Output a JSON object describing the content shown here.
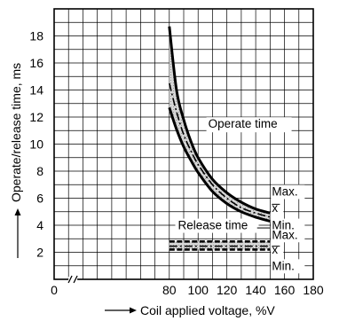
{
  "chart_data": {
    "type": "line",
    "title": "",
    "xlabel": "Coil applied voltage, %V",
    "ylabel": "Operate/release time, ms",
    "xlim": [
      0,
      180
    ],
    "ylim": [
      0,
      20
    ],
    "x_ticks": [
      0,
      80,
      100,
      120,
      140,
      160,
      180
    ],
    "y_ticks": [
      2,
      4,
      6,
      8,
      10,
      12,
      14,
      16,
      18
    ],
    "x_axis_break": true,
    "grid": true,
    "annotations": {
      "operate": "Operate time",
      "release": "Release time",
      "operate_max": "Max.",
      "operate_mean": "x",
      "operate_min": "Min.",
      "release_max": "Max.",
      "release_mean": "x",
      "release_min": "Min."
    },
    "series": [
      {
        "group": "operate",
        "stat": "max",
        "x": [
          80,
          85,
          90,
          95,
          100,
          110,
          120,
          130,
          140,
          150
        ],
        "values": [
          18.7,
          14.0,
          11.8,
          10.2,
          9.0,
          7.4,
          6.4,
          5.7,
          5.2,
          4.9
        ]
      },
      {
        "group": "operate",
        "stat": "mean",
        "x": [
          80,
          85,
          90,
          95,
          100,
          110,
          120,
          130,
          140,
          150
        ],
        "values": [
          14.5,
          12.4,
          10.7,
          9.5,
          8.5,
          7.0,
          6.0,
          5.3,
          4.9,
          4.6
        ]
      },
      {
        "group": "operate",
        "stat": "min",
        "x": [
          80,
          85,
          90,
          95,
          100,
          110,
          120,
          130,
          140,
          150
        ],
        "values": [
          12.7,
          11.1,
          9.8,
          8.8,
          7.9,
          6.5,
          5.6,
          5.0,
          4.6,
          4.3
        ]
      },
      {
        "group": "release",
        "stat": "max",
        "x": [
          80,
          150
        ],
        "values": [
          2.8,
          2.8
        ]
      },
      {
        "group": "release",
        "stat": "mean",
        "x": [
          80,
          150
        ],
        "values": [
          2.45,
          2.45
        ]
      },
      {
        "group": "release",
        "stat": "min",
        "x": [
          80,
          150
        ],
        "values": [
          2.2,
          2.2
        ]
      }
    ]
  }
}
